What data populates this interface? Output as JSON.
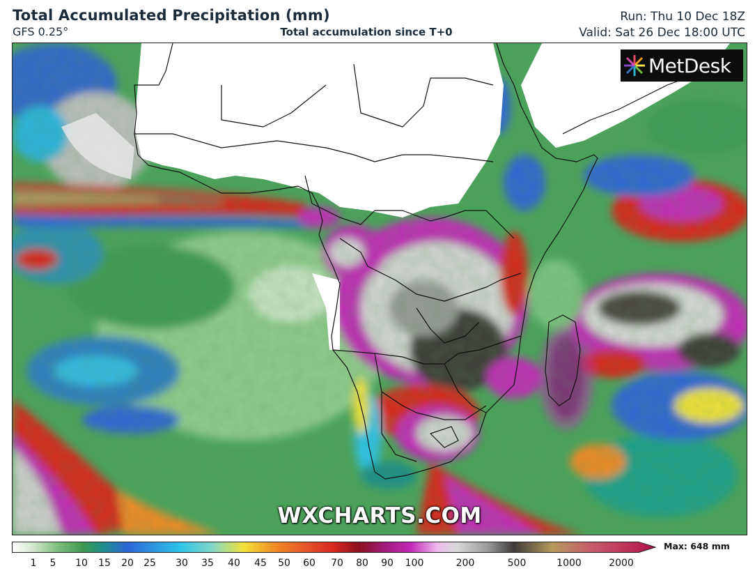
{
  "header": {
    "title": "Total Accumulated Precipitation (mm)",
    "model": "GFS 0.25°",
    "subtitle": "Total accumulation since T+0",
    "run": "Run: Thu 10 Dec 18Z",
    "valid": "Valid: Sat 26 Dec 18:00 UTC"
  },
  "logo": {
    "text": "MetDesk"
  },
  "watermark": "WXCHARTS.COM",
  "legend": {
    "max_label": "Max: 648 mm",
    "ticks": [
      "1",
      "5",
      "10",
      "15",
      "20",
      "25",
      "30",
      "35",
      "40",
      "45",
      "50",
      "60",
      "70",
      "80",
      "90",
      "100",
      "200",
      "500",
      "1000",
      "2000"
    ],
    "colors": {
      "white": "#ffffff",
      "light_green": "#a9d7a0",
      "green": "#3f9a4f",
      "teal": "#1f8f8a",
      "blue": "#2d66d6",
      "cyan": "#2ec3e8",
      "yellow": "#f2e23a",
      "orange": "#f08a25",
      "red": "#d8261f",
      "dark_red": "#8a1020",
      "magenta": "#c229b8",
      "light_pink": "#f0b8ef",
      "grey": "#9a9a9a",
      "dark_grey": "#3d3a38",
      "tan": "#b69a5e",
      "crimson": "#b3124a"
    }
  }
}
